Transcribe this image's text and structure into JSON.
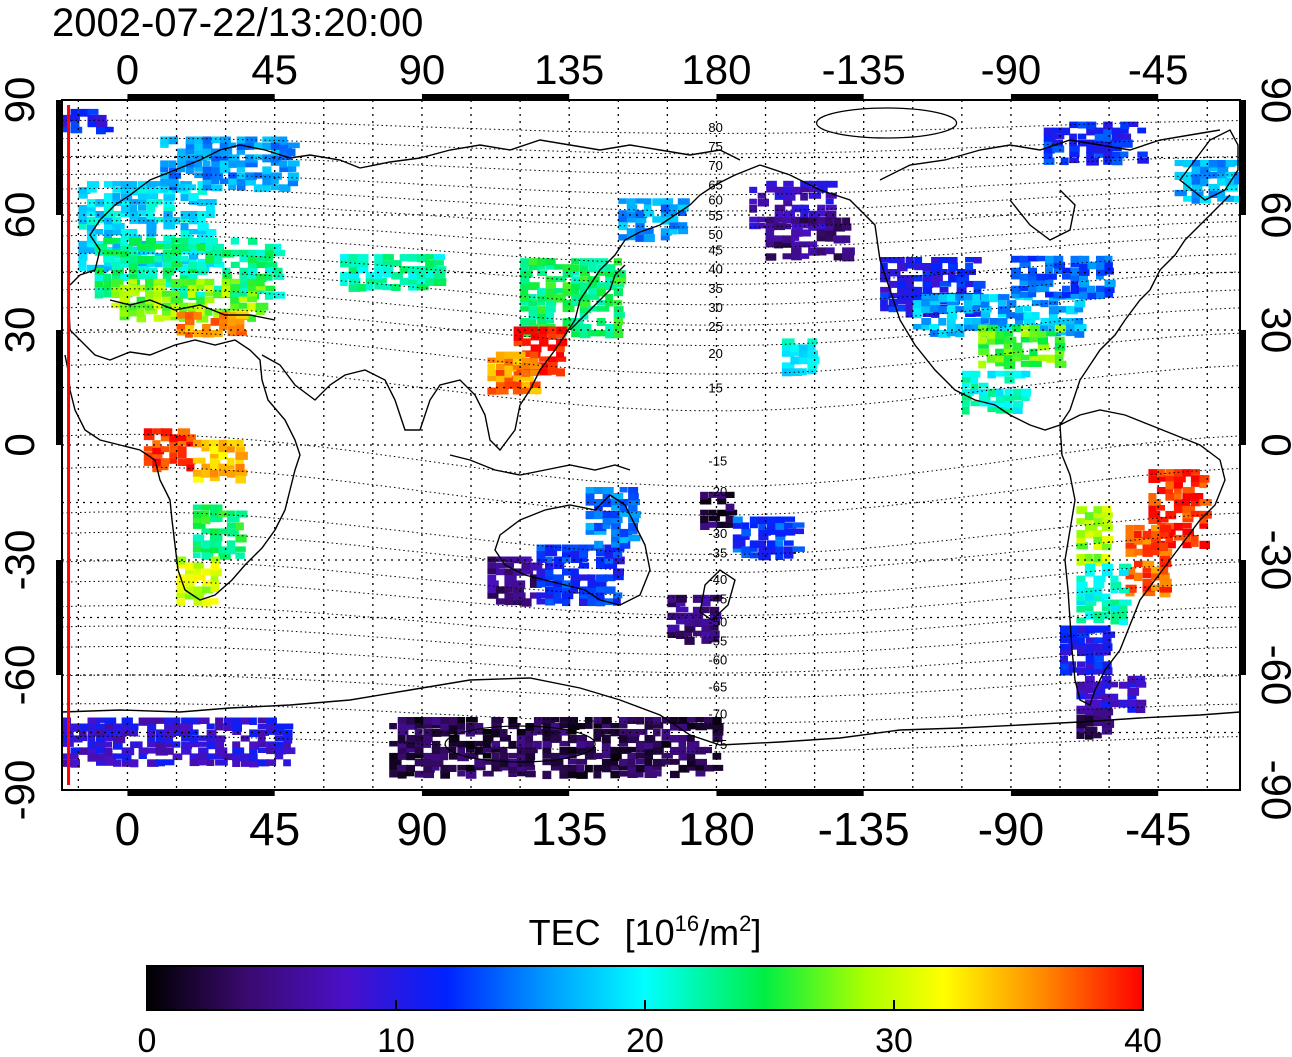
{
  "title": "2002-07-22/13:20:00",
  "map": {
    "projection": "equirectangular",
    "center_longitude": 0,
    "lon_range": [
      -20,
      340
    ],
    "lat_range": [
      -90,
      90
    ],
    "lon_ticks": [
      {
        "lon": 0,
        "label": "0"
      },
      {
        "lon": 45,
        "label": "45"
      },
      {
        "lon": 90,
        "label": "90"
      },
      {
        "lon": 135,
        "label": "135"
      },
      {
        "lon": 180,
        "label": "180"
      },
      {
        "lon": 225,
        "label": "-135"
      },
      {
        "lon": 270,
        "label": "-90"
      },
      {
        "lon": 315,
        "label": "-45"
      }
    ],
    "lat_ticks": [
      {
        "lat": 90,
        "label": "90"
      },
      {
        "lat": 60,
        "label": "60"
      },
      {
        "lat": 30,
        "label": "30"
      },
      {
        "lat": 0,
        "label": "0"
      },
      {
        "lat": -30,
        "label": "-30"
      },
      {
        "lat": -60,
        "label": "-60"
      },
      {
        "lat": -90,
        "label": "-90"
      }
    ],
    "grid": "dotted",
    "contour_labels": [
      {
        "lat": 83,
        "label": "80"
      },
      {
        "lat": 78,
        "label": "75"
      },
      {
        "lat": 73,
        "label": "70"
      },
      {
        "lat": 68,
        "label": "65"
      },
      {
        "lat": 64,
        "label": "60"
      },
      {
        "lat": 60,
        "label": "55"
      },
      {
        "lat": 55,
        "label": "50"
      },
      {
        "lat": 51,
        "label": "45"
      },
      {
        "lat": 46,
        "label": "40"
      },
      {
        "lat": 41,
        "label": "35"
      },
      {
        "lat": 36,
        "label": "30"
      },
      {
        "lat": 31,
        "label": "25"
      },
      {
        "lat": 24,
        "label": "20"
      },
      {
        "lat": 15,
        "label": "15"
      },
      {
        "lat": -4,
        "label": "-15"
      },
      {
        "lat": -12,
        "label": "-20"
      },
      {
        "lat": -23,
        "label": "-30"
      },
      {
        "lat": -28,
        "label": "-35"
      },
      {
        "lat": -35,
        "label": "-40"
      },
      {
        "lat": -40,
        "label": "-45"
      },
      {
        "lat": -46,
        "label": "-50"
      },
      {
        "lat": -51,
        "label": "-55"
      },
      {
        "lat": -56,
        "label": "-60"
      },
      {
        "lat": -63,
        "label": "-65"
      },
      {
        "lat": -70,
        "label": "-70"
      },
      {
        "lat": -78,
        "label": "-75"
      }
    ],
    "contour_label_lon": 180
  },
  "tec_patches": [
    {
      "lon1": -15,
      "lon2": 25,
      "lat1": 47,
      "lat2": 70,
      "value": 19
    },
    {
      "lon1": -10,
      "lon2": 45,
      "lat1": 40,
      "lat2": 55,
      "value": 23
    },
    {
      "lon1": -5,
      "lon2": 40,
      "lat1": 34,
      "lat2": 44,
      "value": 28
    },
    {
      "lon1": 15,
      "lon2": 35,
      "lat1": 30,
      "lat2": 36,
      "value": 36
    },
    {
      "lon1": 10,
      "lon2": 50,
      "lat1": 68,
      "lat2": 82,
      "value": 16
    },
    {
      "lon1": -20,
      "lon2": -5,
      "lat1": 83,
      "lat2": 88,
      "value": 11
    },
    {
      "lon1": 65,
      "lon2": 95,
      "lat1": 42,
      "lat2": 50,
      "value": 22
    },
    {
      "lon1": 120,
      "lon2": 150,
      "lat1": 30,
      "lat2": 50,
      "value": 24
    },
    {
      "lon1": 118,
      "lon2": 132,
      "lat1": 20,
      "lat2": 32,
      "value": 40
    },
    {
      "lon1": 110,
      "lon2": 125,
      "lat1": 15,
      "lat2": 25,
      "value": 36
    },
    {
      "lon1": 150,
      "lon2": 170,
      "lat1": 55,
      "lat2": 65,
      "value": 16
    },
    {
      "lon1": 190,
      "lon2": 215,
      "lat1": 58,
      "lat2": 70,
      "value": 8
    },
    {
      "lon1": 195,
      "lon2": 220,
      "lat1": 50,
      "lat2": 60,
      "value": 5
    },
    {
      "lon1": 230,
      "lon2": 260,
      "lat1": 35,
      "lat2": 50,
      "value": 11
    },
    {
      "lon1": 240,
      "lon2": 290,
      "lat1": 30,
      "lat2": 40,
      "value": 17
    },
    {
      "lon1": 260,
      "lon2": 285,
      "lat1": 22,
      "lat2": 32,
      "value": 27
    },
    {
      "lon1": 270,
      "lon2": 300,
      "lat1": 40,
      "lat2": 50,
      "value": 14
    },
    {
      "lon1": 255,
      "lon2": 275,
      "lat1": 10,
      "lat2": 20,
      "value": 21
    },
    {
      "lon1": 280,
      "lon2": 310,
      "lat1": 75,
      "lat2": 85,
      "value": 12
    },
    {
      "lon1": 320,
      "lon2": 340,
      "lat1": 65,
      "lat2": 75,
      "value": 17
    },
    {
      "lon1": 312,
      "lon2": 330,
      "lat1": -25,
      "lat2": -5,
      "value": 39
    },
    {
      "lon1": 305,
      "lon2": 318,
      "lat1": -38,
      "lat2": -20,
      "value": 37
    },
    {
      "lon1": 290,
      "lon2": 300,
      "lat1": -30,
      "lat2": -15,
      "value": 29
    },
    {
      "lon1": 290,
      "lon2": 305,
      "lat1": -45,
      "lat2": -30,
      "value": 21
    },
    {
      "lon1": 285,
      "lon2": 300,
      "lat1": -58,
      "lat2": -46,
      "value": 11
    },
    {
      "lon1": 290,
      "lon2": 310,
      "lat1": -68,
      "lat2": -60,
      "value": 9
    },
    {
      "lon1": 290,
      "lon2": 300,
      "lat1": -75,
      "lat2": -68,
      "value": 4
    },
    {
      "lon1": 5,
      "lon2": 20,
      "lat1": -5,
      "lat2": 5,
      "value": 39
    },
    {
      "lon1": 20,
      "lon2": 35,
      "lat1": -8,
      "lat2": 2,
      "value": 34
    },
    {
      "lon1": 20,
      "lon2": 35,
      "lat1": -28,
      "lat2": -15,
      "value": 24
    },
    {
      "lon1": 15,
      "lon2": 28,
      "lat1": -40,
      "lat2": -28,
      "value": 30
    },
    {
      "lon1": 110,
      "lon2": 125,
      "lat1": -40,
      "lat2": -28,
      "value": 5
    },
    {
      "lon1": 125,
      "lon2": 150,
      "lat1": -40,
      "lat2": -25,
      "value": 12
    },
    {
      "lon1": 140,
      "lon2": 155,
      "lat1": -25,
      "lat2": -10,
      "value": 15
    },
    {
      "lon1": 165,
      "lon2": 180,
      "lat1": -50,
      "lat2": -38,
      "value": 5
    },
    {
      "lon1": 175,
      "lon2": 185,
      "lat1": -20,
      "lat2": -12,
      "value": 3
    },
    {
      "lon1": 185,
      "lon2": 205,
      "lat1": -28,
      "lat2": -18,
      "value": 13
    },
    {
      "lon1": 200,
      "lon2": 210,
      "lat1": 20,
      "lat2": 28,
      "value": 20
    },
    {
      "lon1": 80,
      "lon2": 180,
      "lat1": -85,
      "lat2": -70,
      "value": 3
    },
    {
      "lon1": -20,
      "lon2": 50,
      "lat1": -82,
      "lat2": -70,
      "value": 9
    }
  ],
  "observer_line_lon": -18,
  "colorbar": {
    "label": "TEC",
    "unit_base": "10",
    "unit_exp": "16",
    "unit_mid": "/m",
    "unit_exp2": "2",
    "min": 0,
    "max": 40,
    "ticks": [
      {
        "value": 0,
        "label": "0"
      },
      {
        "value": 10,
        "label": "10"
      },
      {
        "value": 20,
        "label": "20"
      },
      {
        "value": 30,
        "label": "30"
      },
      {
        "value": 40,
        "label": "40"
      }
    ]
  }
}
